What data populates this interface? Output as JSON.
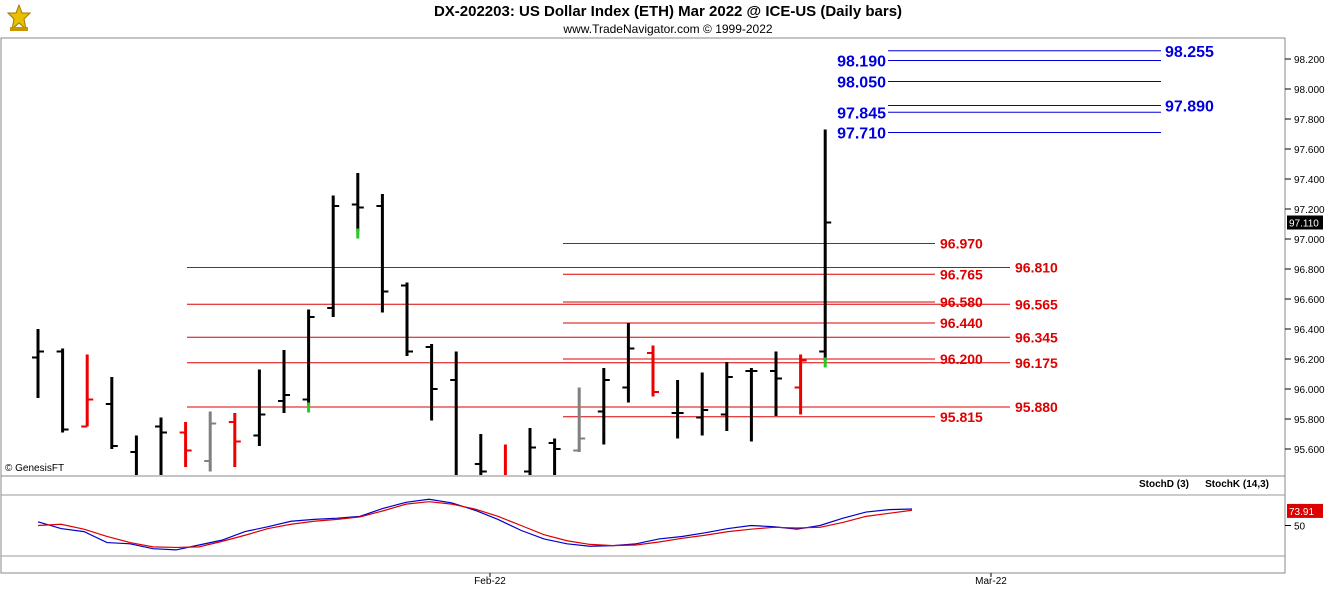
{
  "header": {
    "title": "DX-202203:  US Dollar Index (ETH) Mar 2022 @ ICE-US  (Daily bars)",
    "subtitle": "www.TradeNavigator.com © 1999-2022",
    "watermark": "© GenesisFT"
  },
  "colors": {
    "up": "#000000",
    "down": "#ee0000",
    "neutral": "#808080",
    "blue_level": "#0000dd",
    "red_level": "#dd0000",
    "stochK": "#0000cc",
    "stochD": "#dd0000",
    "last_bg": "#000000",
    "stoch_bg": "#dd0000"
  },
  "chart_data": [
    {
      "type": "ohlc",
      "ylim": [
        95.4,
        98.3
      ],
      "yticks": [
        "95.600",
        "95.800",
        "96.000",
        "96.200",
        "96.400",
        "96.600",
        "96.800",
        "97.000",
        "97.200",
        "97.400",
        "97.600",
        "97.800",
        "98.000",
        "98.200"
      ],
      "x_labels": [
        "Feb-22",
        "Mar-22"
      ],
      "last_price": "97.110",
      "bars": [
        {
          "o": 96.21,
          "h": 96.4,
          "l": 95.94,
          "c": 96.25,
          "col": "up"
        },
        {
          "o": 96.25,
          "h": 96.27,
          "l": 95.71,
          "c": 95.73,
          "col": "up"
        },
        {
          "o": 95.75,
          "h": 96.23,
          "l": 95.75,
          "c": 95.93,
          "col": "down"
        },
        {
          "o": 95.9,
          "h": 96.08,
          "l": 95.6,
          "c": 95.62,
          "col": "up"
        },
        {
          "o": 95.58,
          "h": 95.69,
          "l": 95.3,
          "c": 95.35,
          "col": "up"
        },
        {
          "o": 95.75,
          "h": 95.81,
          "l": 95.3,
          "c": 95.71,
          "col": "up"
        },
        {
          "o": 95.71,
          "h": 95.78,
          "l": 95.48,
          "c": 95.59,
          "col": "down"
        },
        {
          "o": 95.52,
          "h": 95.85,
          "l": 95.45,
          "c": 95.77,
          "col": "neutral"
        },
        {
          "o": 95.78,
          "h": 95.84,
          "l": 95.48,
          "c": 95.65,
          "col": "down"
        },
        {
          "o": 95.69,
          "h": 96.13,
          "l": 95.62,
          "c": 95.83,
          "col": "up"
        },
        {
          "o": 95.92,
          "h": 96.26,
          "l": 95.84,
          "c": 95.96,
          "col": "up"
        },
        {
          "o": 95.93,
          "h": 96.53,
          "l": 95.89,
          "c": 96.48,
          "col": "up"
        },
        {
          "o": 96.54,
          "h": 97.29,
          "l": 96.48,
          "c": 97.22,
          "col": "up"
        },
        {
          "o": 97.23,
          "h": 97.44,
          "l": 97.05,
          "c": 97.21,
          "col": "up"
        },
        {
          "o": 97.22,
          "h": 97.3,
          "l": 96.51,
          "c": 96.65,
          "col": "up"
        },
        {
          "o": 96.69,
          "h": 96.71,
          "l": 96.22,
          "c": 96.25,
          "col": "up"
        },
        {
          "o": 96.28,
          "h": 96.3,
          "l": 95.79,
          "c": 96.0,
          "col": "up"
        },
        {
          "o": 96.06,
          "h": 96.25,
          "l": 95.3,
          "c": 95.35,
          "col": "up"
        },
        {
          "o": 95.5,
          "h": 95.7,
          "l": 95.3,
          "c": 95.45,
          "col": "up"
        },
        {
          "o": 95.42,
          "h": 95.63,
          "l": 95.3,
          "c": 95.38,
          "col": "down"
        },
        {
          "o": 95.45,
          "h": 95.74,
          "l": 95.34,
          "c": 95.61,
          "col": "up"
        },
        {
          "o": 95.64,
          "h": 95.67,
          "l": 95.38,
          "c": 95.6,
          "col": "up"
        },
        {
          "o": 95.59,
          "h": 96.01,
          "l": 95.58,
          "c": 95.67,
          "col": "neutral"
        },
        {
          "o": 95.85,
          "h": 96.14,
          "l": 95.63,
          "c": 96.06,
          "col": "up"
        },
        {
          "o": 96.01,
          "h": 96.44,
          "l": 95.91,
          "c": 96.27,
          "col": "up"
        },
        {
          "o": 96.24,
          "h": 96.29,
          "l": 95.95,
          "c": 95.98,
          "col": "down"
        },
        {
          "o": 95.84,
          "h": 96.06,
          "l": 95.67,
          "c": 95.84,
          "col": "up"
        },
        {
          "o": 95.81,
          "h": 96.11,
          "l": 95.69,
          "c": 95.86,
          "col": "up"
        },
        {
          "o": 95.83,
          "h": 96.18,
          "l": 95.72,
          "c": 96.08,
          "col": "up"
        },
        {
          "o": 96.12,
          "h": 96.14,
          "l": 95.65,
          "c": 96.12,
          "col": "up"
        },
        {
          "o": 96.12,
          "h": 96.25,
          "l": 95.82,
          "c": 96.07,
          "col": "up"
        },
        {
          "o": 96.01,
          "h": 96.23,
          "l": 95.83,
          "c": 96.19,
          "col": "down"
        },
        {
          "o": 96.25,
          "h": 97.73,
          "l": 96.19,
          "c": 97.11,
          "col": "up"
        }
      ],
      "levels": [
        {
          "value": 98.255,
          "label": "98.255",
          "color": "blue",
          "seg": "right"
        },
        {
          "value": 98.19,
          "label": "98.190",
          "color": "blue",
          "seg": "left"
        },
        {
          "value": 98.05,
          "label": "98.050",
          "color": "blue",
          "seg": "left"
        },
        {
          "value": 97.89,
          "label": "97.890",
          "color": "blue",
          "seg": "right"
        },
        {
          "value": 97.845,
          "label": "97.845",
          "color": "blue",
          "seg": "left"
        },
        {
          "value": 97.71,
          "label": "97.710",
          "color": "blue",
          "seg": "left"
        },
        {
          "value": 96.97,
          "label": "96.970",
          "color": "red",
          "seg": "short"
        },
        {
          "value": 96.81,
          "label": "96.810",
          "color": "red",
          "seg": "long"
        },
        {
          "value": 96.765,
          "label": "96.765",
          "color": "red",
          "seg": "short"
        },
        {
          "value": 96.58,
          "label": "96.580",
          "color": "red",
          "seg": "short"
        },
        {
          "value": 96.565,
          "label": "96.565",
          "color": "red",
          "seg": "long"
        },
        {
          "value": 96.44,
          "label": "96.440",
          "color": "red",
          "seg": "short"
        },
        {
          "value": 96.345,
          "label": "96.345",
          "color": "red",
          "seg": "long"
        },
        {
          "value": 96.2,
          "label": "96.200",
          "color": "red",
          "seg": "short"
        },
        {
          "value": 96.175,
          "label": "96.175",
          "color": "red",
          "seg": "long"
        },
        {
          "value": 95.88,
          "label": "95.880",
          "color": "red",
          "seg": "long"
        },
        {
          "value": 95.815,
          "label": "95.815",
          "color": "red",
          "seg": "short"
        }
      ]
    },
    {
      "type": "line",
      "ylim": [
        0,
        100
      ],
      "yticks": [
        "50"
      ],
      "last_value": "73.91",
      "legend": [
        "StochD (3)",
        "StochK (14,3)"
      ],
      "series": [
        {
          "name": "StochK (14,3)",
          "values": [
            56,
            45,
            40,
            22,
            20,
            12,
            10,
            18,
            26,
            40,
            48,
            57,
            60,
            62,
            65,
            78,
            88,
            93,
            87,
            75,
            60,
            42,
            28,
            20,
            16,
            17,
            20,
            28,
            32,
            38,
            45,
            50,
            48,
            44,
            50,
            62,
            72,
            76,
            77
          ]
        },
        {
          "name": "StochD (3)",
          "values": [
            50,
            52,
            44,
            32,
            22,
            15,
            14,
            15,
            24,
            34,
            45,
            52,
            57,
            60,
            64,
            74,
            85,
            89,
            85,
            77,
            65,
            50,
            35,
            25,
            19,
            17,
            18,
            23,
            29,
            34,
            40,
            44,
            47,
            46,
            47,
            55,
            65,
            70,
            75
          ]
        }
      ]
    }
  ]
}
